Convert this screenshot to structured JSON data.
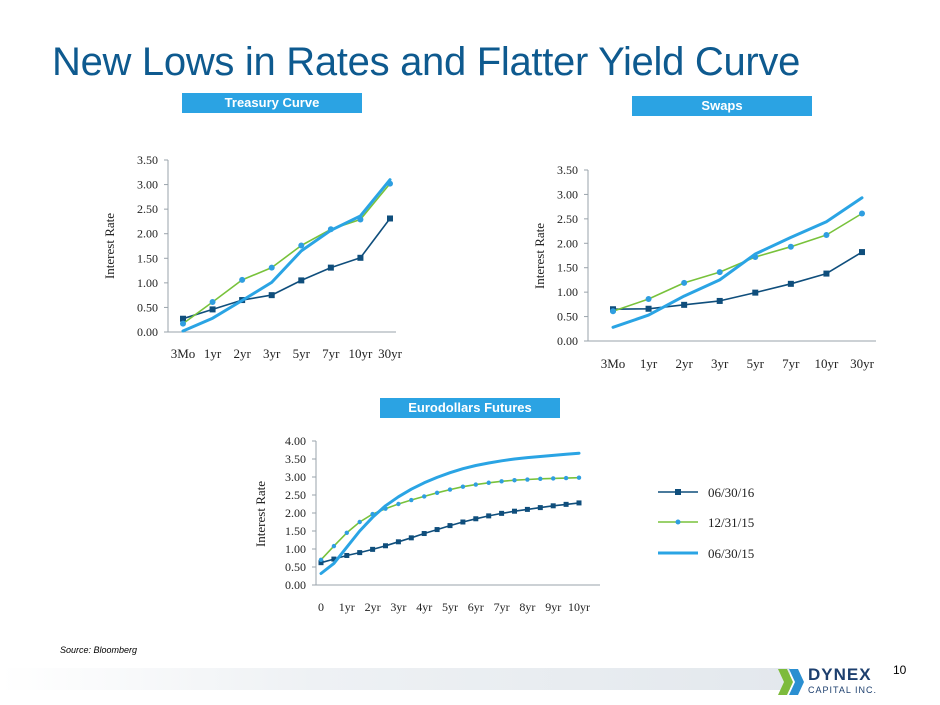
{
  "slide": {
    "title": "New Lows in Rates and Flatter Yield Curve",
    "source": "Source: Bloomberg",
    "page_number": "10"
  },
  "logo": {
    "name": "DYNEX",
    "sub": "CAPITAL INC."
  },
  "colors": {
    "title": "#0e5a8f",
    "label_bg": "#2ba3e3",
    "series_06_30_16": "#0f4e7c",
    "series_12_31_15": "#78c23b",
    "series_12_31_15_marker": "#2f9ee0",
    "series_06_30_15": "#2aa4e4"
  },
  "chart_data": [
    {
      "label": "Treasury Curve",
      "type": "line",
      "ylabel": "Interest Rate",
      "ylim": [
        0,
        3.5
      ],
      "yticks": [
        "0.00",
        "0.50",
        "1.00",
        "1.50",
        "2.00",
        "2.50",
        "3.00",
        "3.50"
      ],
      "categories": [
        "3Mo",
        "1yr",
        "2yr",
        "3yr",
        "5yr",
        "7yr",
        "10yr",
        "30yr"
      ],
      "series": [
        {
          "key": "s16",
          "values": [
            0.27,
            0.46,
            0.65,
            0.75,
            1.05,
            1.31,
            1.51,
            2.31
          ]
        },
        {
          "key": "s15",
          "values": [
            0.17,
            0.61,
            1.06,
            1.31,
            1.76,
            2.09,
            2.29,
            3.02
          ]
        },
        {
          "key": "s15b",
          "values": [
            0.02,
            0.28,
            0.64,
            1.01,
            1.65,
            2.07,
            2.36,
            3.1
          ]
        }
      ]
    },
    {
      "label": "Swaps",
      "type": "line",
      "ylabel": "Interest Rate",
      "ylim": [
        0,
        3.5
      ],
      "yticks": [
        "0.00",
        "0.50",
        "1.00",
        "1.50",
        "2.00",
        "2.50",
        "3.00",
        "3.50"
      ],
      "categories": [
        "3Mo",
        "1yr",
        "2yr",
        "3yr",
        "5yr",
        "7yr",
        "10yr",
        "30yr"
      ],
      "series": [
        {
          "key": "s16",
          "values": [
            0.65,
            0.66,
            0.74,
            0.82,
            0.99,
            1.17,
            1.38,
            1.82
          ]
        },
        {
          "key": "s15",
          "values": [
            0.61,
            0.86,
            1.19,
            1.41,
            1.72,
            1.93,
            2.17,
            2.61
          ]
        },
        {
          "key": "s15b",
          "values": [
            0.28,
            0.53,
            0.92,
            1.25,
            1.78,
            2.12,
            2.44,
            2.93
          ]
        }
      ]
    },
    {
      "label": "Eurodollars Futures",
      "type": "line",
      "ylabel": "Interest Rate",
      "ylim": [
        0,
        4.0
      ],
      "yticks": [
        "0.00",
        "0.50",
        "1.00",
        "1.50",
        "2.00",
        "2.50",
        "3.00",
        "3.50",
        "4.00"
      ],
      "xlim": [
        0,
        10
      ],
      "xticks": [
        "0",
        "1yr",
        "2yr",
        "3yr",
        "4yr",
        "5yr",
        "6yr",
        "7yr",
        "8yr",
        "9yr",
        "10yr"
      ],
      "legend": [
        "06/30/16",
        "12/31/15",
        "06/30/15"
      ],
      "series": [
        {
          "key": "s16",
          "name": "06/30/16",
          "x": [
            0,
            0.5,
            1,
            1.5,
            2,
            2.5,
            3,
            3.5,
            4,
            4.5,
            5,
            5.5,
            6,
            6.5,
            7,
            7.5,
            8,
            8.5,
            9,
            9.5,
            10
          ],
          "values": [
            0.62,
            0.72,
            0.82,
            0.9,
            0.99,
            1.09,
            1.2,
            1.31,
            1.43,
            1.54,
            1.65,
            1.75,
            1.84,
            1.92,
            1.99,
            2.05,
            2.1,
            2.15,
            2.2,
            2.24,
            2.28
          ]
        },
        {
          "key": "s15",
          "name": "12/31/15",
          "x": [
            0,
            0.5,
            1,
            1.5,
            2,
            2.5,
            3,
            3.5,
            4,
            4.5,
            5,
            5.5,
            6,
            6.5,
            7,
            7.5,
            8,
            8.5,
            9,
            9.5,
            10
          ],
          "values": [
            0.7,
            1.08,
            1.45,
            1.75,
            1.97,
            2.12,
            2.25,
            2.36,
            2.46,
            2.56,
            2.65,
            2.73,
            2.79,
            2.84,
            2.88,
            2.91,
            2.93,
            2.95,
            2.96,
            2.97,
            2.98
          ]
        },
        {
          "key": "s15b",
          "name": "06/30/15",
          "x": [
            0,
            0.5,
            1,
            1.5,
            2,
            2.5,
            3,
            3.5,
            4,
            4.5,
            5,
            5.5,
            6,
            6.5,
            7,
            7.5,
            8,
            8.5,
            9,
            9.5,
            10
          ],
          "values": [
            0.32,
            0.6,
            1.05,
            1.5,
            1.88,
            2.2,
            2.45,
            2.66,
            2.84,
            2.99,
            3.12,
            3.23,
            3.32,
            3.39,
            3.45,
            3.5,
            3.54,
            3.57,
            3.6,
            3.63,
            3.66
          ]
        }
      ]
    }
  ]
}
